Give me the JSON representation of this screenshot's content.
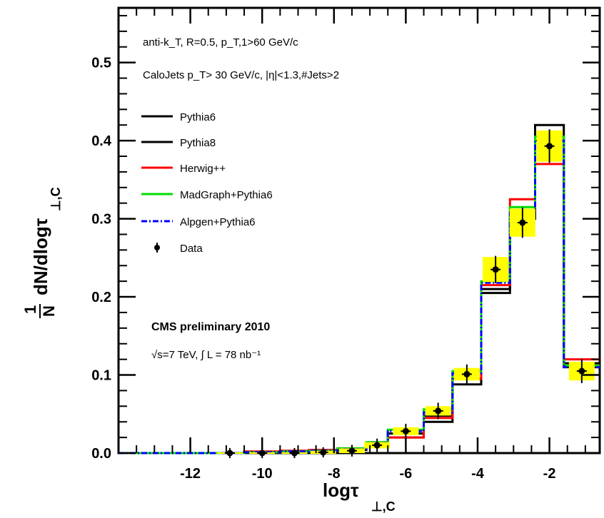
{
  "chart_data": {
    "type": "line",
    "xlabel": {
      "base": "logτ",
      "sub": "⊥,C"
    },
    "ylabel": {
      "prefix": "1",
      "prefix_den": "N",
      "main": "dN/dlogτ",
      "sub": "⊥,C"
    },
    "xlim": [
      -14,
      -0.6
    ],
    "ylim": [
      0,
      0.57
    ],
    "x_ticks": [
      "-12",
      "-10",
      "-8",
      "-6",
      "-4",
      "-2"
    ],
    "x_tick_values": [
      -12,
      -10,
      -8,
      -6,
      -4,
      -2
    ],
    "y_ticks": [
      "0.0",
      "0.1",
      "0.2",
      "0.3",
      "0.4",
      "0.5"
    ],
    "y_tick_values": [
      0,
      0.1,
      0.2,
      0.3,
      0.4,
      0.5
    ],
    "bin_edges": [
      -14,
      -11.5,
      -10.5,
      -9.5,
      -8.7,
      -7.9,
      -7.1,
      -6.5,
      -5.5,
      -4.7,
      -3.9,
      -3.1,
      -2.4,
      -1.6,
      -0.6
    ],
    "annotations": {
      "line1": "anti-k_T, R=0.5, p_T,1>60 GeV/c",
      "line2": "CaloJets p_T> 30 GeV/c, |η|<1.3,#Jets>2",
      "prelim": "CMS preliminary 2010",
      "lumi": "√s=7 TeV, ∫ L = 78 nb⁻¹"
    },
    "legend_position": "top-left",
    "series": [
      {
        "name": "Pythia6",
        "color": "#000000",
        "style": "solid",
        "values": [
          0,
          0,
          0,
          0.001,
          0.002,
          0.004,
          0.01,
          0.02,
          0.04,
          0.088,
          0.205,
          0.305,
          0.42,
          0.11
        ]
      },
      {
        "name": "Pythia8",
        "color": "#000000",
        "style": "solid",
        "values": [
          0,
          0,
          0.001,
          0.002,
          0.003,
          0.005,
          0.012,
          0.025,
          0.048,
          0.095,
          0.21,
          0.3,
          0.4,
          0.115
        ]
      },
      {
        "name": "Herwig++",
        "color": "#ff0000",
        "style": "solid",
        "values": [
          0,
          0,
          0.002,
          0.003,
          0.004,
          0.006,
          0.012,
          0.02,
          0.045,
          0.095,
          0.215,
          0.325,
          0.37,
          0.12
        ]
      },
      {
        "name": "MadGraph+Pythia6",
        "color": "#00dd00",
        "style": "solid",
        "values": [
          0,
          0,
          0.001,
          0.002,
          0.003,
          0.006,
          0.014,
          0.03,
          0.056,
          0.105,
          0.22,
          0.315,
          0.405,
          0.112
        ]
      },
      {
        "name": "Alpgen+Pythia6",
        "color": "#0000ff",
        "style": "dashdot",
        "values": [
          0,
          0,
          0.001,
          0.002,
          0.003,
          0.005,
          0.013,
          0.028,
          0.052,
          0.102,
          0.218,
          0.308,
          0.4,
          0.11
        ]
      }
    ],
    "data": {
      "name": "Data",
      "x": [
        -10.9,
        -10.0,
        -9.1,
        -8.3,
        -7.5,
        -6.8,
        -6.0,
        -5.1,
        -4.3,
        -3.5,
        -2.75,
        -2.0,
        -1.1
      ],
      "y": [
        0.0,
        0.0,
        0.0,
        0.001,
        0.003,
        0.01,
        0.028,
        0.054,
        0.101,
        0.235,
        0.295,
        0.393,
        0.105
      ],
      "err": [
        0.001,
        0.001,
        0.001,
        0.001,
        0.002,
        0.003,
        0.004,
        0.005,
        0.007,
        0.012,
        0.014,
        0.016,
        0.01
      ],
      "syst": [
        0.001,
        0.001,
        0.001,
        0.002,
        0.003,
        0.004,
        0.005,
        0.006,
        0.008,
        0.016,
        0.018,
        0.02,
        0.012
      ],
      "syst_color": "#ffff00",
      "syst_color2": "#00ff00"
    }
  }
}
